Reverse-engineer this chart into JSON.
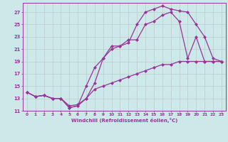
{
  "xlabel": "Windchill (Refroidissement éolien,°C)",
  "bg_color": "#cce8e8",
  "grid_color": "#bbcccc",
  "line_color": "#993399",
  "xlim": [
    -0.5,
    23.5
  ],
  "ylim": [
    11,
    28.5
  ],
  "yticks": [
    11,
    13,
    15,
    17,
    19,
    21,
    23,
    25,
    27
  ],
  "xticks": [
    0,
    1,
    2,
    3,
    4,
    5,
    6,
    7,
    8,
    9,
    10,
    11,
    12,
    13,
    14,
    15,
    16,
    17,
    18,
    19,
    20,
    21,
    22,
    23
  ],
  "line1_x": [
    0,
    1,
    2,
    3,
    4,
    5,
    6,
    7,
    8,
    9,
    10,
    11,
    12,
    13,
    14,
    15,
    16,
    17,
    18,
    19,
    20,
    21,
    22,
    23
  ],
  "line1_y": [
    14.0,
    13.3,
    13.5,
    13.0,
    13.0,
    11.5,
    11.8,
    13.0,
    15.5,
    19.5,
    21.0,
    21.5,
    22.0,
    25.0,
    27.0,
    27.5,
    28.0,
    27.5,
    27.2,
    27.0,
    25.0,
    23.0,
    19.5,
    19.0
  ],
  "line2_x": [
    0,
    1,
    2,
    3,
    4,
    5,
    6,
    7,
    8,
    9,
    10,
    11,
    12,
    13,
    14,
    15,
    16,
    17,
    18,
    19,
    20,
    21,
    22,
    23
  ],
  "line2_y": [
    14.0,
    13.3,
    13.5,
    13.0,
    13.0,
    11.5,
    11.8,
    15.0,
    18.0,
    19.5,
    21.5,
    21.5,
    22.5,
    22.5,
    25.0,
    25.5,
    26.5,
    27.0,
    25.5,
    19.5,
    23.0,
    19.0,
    19.0,
    19.0
  ],
  "line3_x": [
    0,
    1,
    2,
    3,
    4,
    5,
    6,
    7,
    8,
    9,
    10,
    11,
    12,
    13,
    14,
    15,
    16,
    17,
    18,
    19,
    20,
    21,
    22,
    23
  ],
  "line3_y": [
    14.0,
    13.3,
    13.5,
    13.0,
    13.0,
    11.8,
    12.0,
    13.0,
    14.5,
    15.0,
    15.5,
    16.0,
    16.5,
    17.0,
    17.5,
    18.0,
    18.5,
    18.5,
    19.0,
    19.0,
    19.0,
    19.0,
    19.0,
    19.0
  ]
}
